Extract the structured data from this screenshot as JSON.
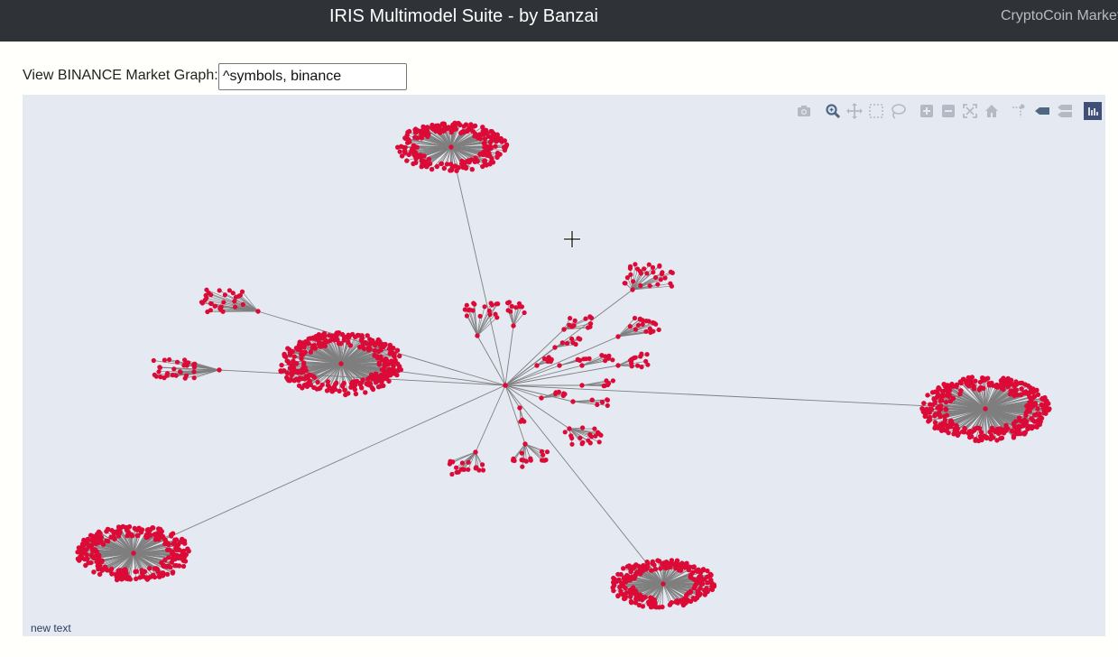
{
  "header": {
    "title": "IRIS Multimodel Suite - by Banzai",
    "nav_link": "CryptoCoin Market"
  },
  "query": {
    "label": "View BINANCE Market Graph:",
    "value": "^symbols, binance"
  },
  "graph": {
    "node_color": "#dc0a36",
    "edge_color": "#7f7f7f",
    "background": "#e5e9f2",
    "footer_text": "new text"
  },
  "modebar": {
    "buttons": [
      {
        "name": "download-plot-button",
        "icon": "camera-icon",
        "color": "#b4bac4"
      },
      {
        "name": "zoom-button",
        "icon": "zoom-icon",
        "color": "#506784"
      },
      {
        "name": "pan-button",
        "icon": "pan-icon",
        "color": "#b4bac4"
      },
      {
        "name": "box-select-button",
        "icon": "box-select-icon",
        "color": "#b4bac4"
      },
      {
        "name": "lasso-select-button",
        "icon": "lasso-icon",
        "color": "#b4bac4"
      },
      {
        "name": "zoom-in-button",
        "icon": "zoom-in-icon",
        "color": "#b4bac4"
      },
      {
        "name": "zoom-out-button",
        "icon": "zoom-out-icon",
        "color": "#b4bac4"
      },
      {
        "name": "autoscale-button",
        "icon": "autoscale-icon",
        "color": "#b4bac4"
      },
      {
        "name": "reset-axes-button",
        "icon": "home-icon",
        "color": "#b4bac4"
      },
      {
        "name": "toggle-spike-lines-button",
        "icon": "spikeline-icon",
        "color": "#b4bac4"
      },
      {
        "name": "show-closest-data-button",
        "icon": "hover-closest-icon",
        "color": "#506784"
      },
      {
        "name": "compare-data-button",
        "icon": "hover-compare-icon",
        "color": "#b4bac4"
      },
      {
        "name": "plotly-logo-button",
        "icon": "plotly-logo-icon",
        "color": "#3f4f75"
      }
    ]
  }
}
